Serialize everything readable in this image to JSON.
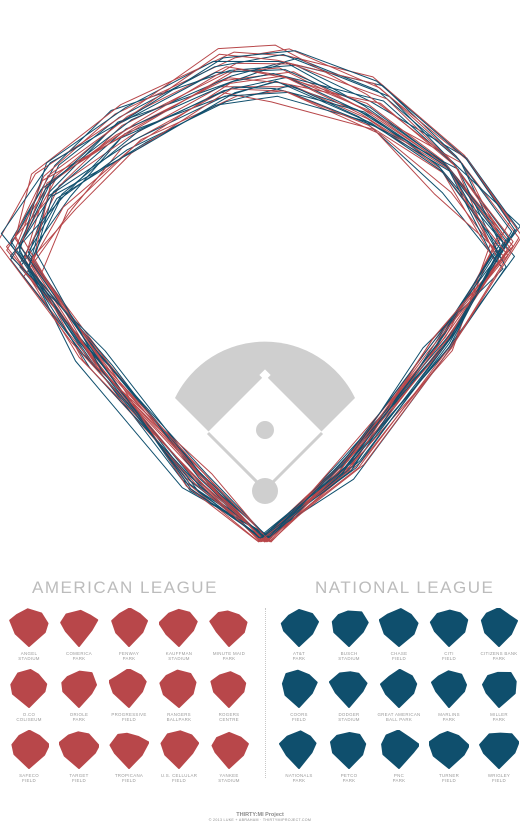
{
  "colors": {
    "american": "#b8474a",
    "national": "#0f4f6d",
    "infield": "#cfcfcf"
  },
  "american_league": {
    "title": "AMERICAN LEAGUE",
    "parks": [
      [
        "ANGEL",
        "STADIUM"
      ],
      [
        "COMERICA",
        "PARK"
      ],
      [
        "FENWAY",
        "PARK"
      ],
      [
        "KAUFFMAN",
        "STADIUM"
      ],
      [
        "MINUTE MAID",
        "PARK"
      ],
      [
        "O.CO",
        "COLISEUM"
      ],
      [
        "ORIOLE",
        "PARK"
      ],
      [
        "PROGRESSIVE",
        "FIELD"
      ],
      [
        "RANGERS",
        "BALLPARK"
      ],
      [
        "ROGERS",
        "CENTRE"
      ],
      [
        "SAFECO",
        "FIELD"
      ],
      [
        "TARGET",
        "FIELD"
      ],
      [
        "TROPICANA",
        "FIELD"
      ],
      [
        "U.S. CELLULAR",
        "FIELD"
      ],
      [
        "YANKEE",
        "STADIUM"
      ]
    ]
  },
  "national_league": {
    "title": "NATIONAL LEAGUE",
    "parks": [
      [
        "AT&T",
        "PARK"
      ],
      [
        "BUSCH",
        "STADIUM"
      ],
      [
        "CHASE",
        "FIELD"
      ],
      [
        "CITI",
        "FIELD"
      ],
      [
        "CITIZENS BANK",
        "PARK"
      ],
      [
        "COORS",
        "FIELD"
      ],
      [
        "DODGER",
        "STADIUM"
      ],
      [
        "GREAT AMERICAN",
        "BALL PARK"
      ],
      [
        "MARLINS",
        "PARK"
      ],
      [
        "MILLER",
        "PARK"
      ],
      [
        "NATIONALS",
        "PARK"
      ],
      [
        "PETCO",
        "PARK"
      ],
      [
        "PNC",
        "PARK"
      ],
      [
        "TURNER",
        "FIELD"
      ],
      [
        "WRIGLEY",
        "FIELD"
      ]
    ]
  },
  "footer": {
    "title": "THIRTY:MI Project",
    "subtitle": "© 2013 LUKE + ABRAHAM · THIRTYMIPROJECT.COM"
  }
}
